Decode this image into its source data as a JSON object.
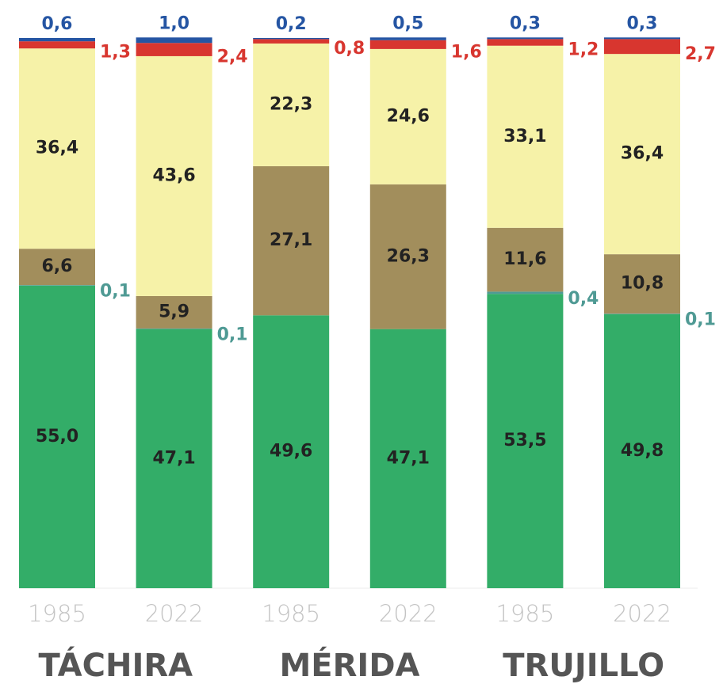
{
  "chart_data": {
    "type": "stacked_bar",
    "categories": [
      "1985",
      "2022",
      "1985",
      "2022",
      "1985",
      "2022"
    ],
    "groups": [
      "TÁCHIRA",
      "MÉRIDA",
      "TRUJILLO"
    ],
    "ylim": [
      0,
      100
    ],
    "series": [
      {
        "color": "#33ad68",
        "values": [
          55.0,
          47.1,
          49.6,
          47.1,
          53.5,
          49.8
        ],
        "value_labels": [
          "55,0",
          "47,1",
          "49,6",
          "47,1",
          "53,5",
          "49,8"
        ]
      },
      {
        "color": "#4f9a94",
        "values": [
          0.1,
          0.1,
          null,
          null,
          0.4,
          0.1
        ],
        "value_labels": [
          "0,1",
          "0,1",
          null,
          null,
          "0,4",
          "0,1"
        ]
      },
      {
        "color": "#a28e5c",
        "values": [
          6.6,
          5.9,
          27.1,
          26.3,
          11.6,
          10.8
        ],
        "value_labels": [
          "6,6",
          "5,9",
          "27,1",
          "26,3",
          "11,6",
          "10,8"
        ]
      },
      {
        "color": "#f6f2a8",
        "values": [
          36.4,
          43.6,
          22.3,
          24.6,
          33.1,
          36.4
        ],
        "value_labels": [
          "36,4",
          "43,6",
          "22,3",
          "24,6",
          "33,1",
          "36,4"
        ]
      },
      {
        "color": "#d8362f",
        "values": [
          1.3,
          2.4,
          0.8,
          1.6,
          1.2,
          2.7
        ],
        "value_labels": [
          "1,3",
          "2,4",
          "0,8",
          "1,6",
          "1,2",
          "2,7"
        ]
      },
      {
        "color": "#2555a3",
        "values": [
          0.6,
          1.0,
          0.2,
          0.5,
          0.3,
          0.3
        ],
        "value_labels": [
          "0,6",
          "1,0",
          "0,2",
          "0,5",
          "0,3",
          "0,3"
        ]
      }
    ]
  }
}
